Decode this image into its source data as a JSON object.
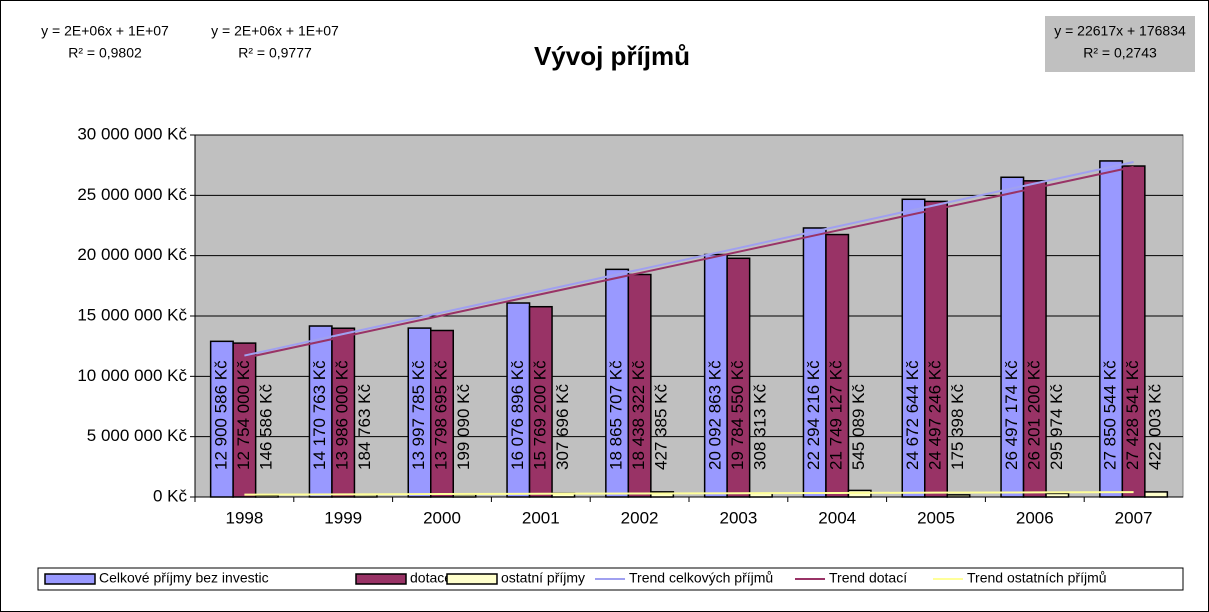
{
  "chart_data": {
    "type": "bar",
    "title": "Vývoj příjmů",
    "categories": [
      "1998",
      "1999",
      "2000",
      "2001",
      "2002",
      "2003",
      "2004",
      "2005",
      "2006",
      "2007"
    ],
    "series": [
      {
        "name": "Celkové příjmy bez investic",
        "color": "#9999ff",
        "values": [
          12900586,
          14170763,
          13997785,
          16076896,
          18865707,
          20092863,
          22294216,
          24672644,
          26497174,
          27850544
        ],
        "value_labels": [
          "12 900 586 Kč",
          "14 170 763 Kč",
          "13 997 785 Kč",
          "16 076 896 Kč",
          "18 865 707 Kč",
          "20 092 863 Kč",
          "22 294 216 Kč",
          "24 672 644 Kč",
          "26 497 174 Kč",
          "27 850 544 Kč"
        ]
      },
      {
        "name": "dotace",
        "color": "#993366",
        "values": [
          12754000,
          13986000,
          13798695,
          15769200,
          18438322,
          19784550,
          21749127,
          24497246,
          26201200,
          27428541
        ],
        "value_labels": [
          "12 754 000 Kč",
          "13 986 000 Kč",
          "13 798 695 Kč",
          "15 769 200 Kč",
          "18 438 322 Kč",
          "19 784 550 Kč",
          "21 749 127 Kč",
          "24 497 246 Kč",
          "26 201 200 Kč",
          "27 428 541 Kč"
        ]
      },
      {
        "name": "ostatní příjmy",
        "color": "#ffffcc",
        "values": [
          146586,
          184763,
          199090,
          307696,
          427385,
          308313,
          545089,
          175398,
          295974,
          422003
        ],
        "value_labels": [
          "146 586 Kč",
          "184 763 Kč",
          "199 090 Kč",
          "307 696 Kč",
          "427 385 Kč",
          "308 313 Kč",
          "545 089 Kč",
          "175 398 Kč",
          "295 974 Kč",
          "422 003 Kč"
        ]
      },
      {
        "name": "Trend celkových příjmů",
        "type": "line",
        "color": "#a0a0f0",
        "values": [
          11720000,
          13510000,
          15290000,
          17070000,
          18850000,
          20630000,
          22420000,
          24200000,
          25980000,
          27760000
        ]
      },
      {
        "name": "Trend dotací",
        "type": "line",
        "color": "#993366",
        "values": [
          11520000,
          13280000,
          15040000,
          16800000,
          18560000,
          20320000,
          22080000,
          23840000,
          25600000,
          27360000
        ]
      },
      {
        "name": "Trend ostatních příjmů",
        "type": "line",
        "color": "#ffff99",
        "values": [
          199451,
          222068,
          244685,
          267302,
          289919,
          312536,
          335153,
          357770,
          380387,
          403004
        ]
      }
    ],
    "annotations": [
      {
        "equation": "y = 2E+06x + 1E+07",
        "r2": "R² = 0,9802",
        "color": "#9999ff"
      },
      {
        "equation": "y = 2E+06x + 1E+07",
        "r2": "R² = 0,9777",
        "color": "#993366"
      },
      {
        "equation": "y = 22617x + 176834",
        "r2": "R² = 0,2743",
        "color": "#ffff99"
      }
    ],
    "ylim": [
      0,
      30000000
    ],
    "yticks": [
      {
        "value": 0,
        "label": "0 Kč"
      },
      {
        "value": 5000000,
        "label": "5 000 000 Kč"
      },
      {
        "value": 10000000,
        "label": "10 000 000 Kč"
      },
      {
        "value": 15000000,
        "label": "15 000 000 Kč"
      },
      {
        "value": 20000000,
        "label": "20 000 000 Kč"
      },
      {
        "value": 25000000,
        "label": "25 000 000 Kč"
      },
      {
        "value": 30000000,
        "label": "30 000 000 Kč"
      }
    ],
    "grid": true,
    "legend": "bottom"
  }
}
